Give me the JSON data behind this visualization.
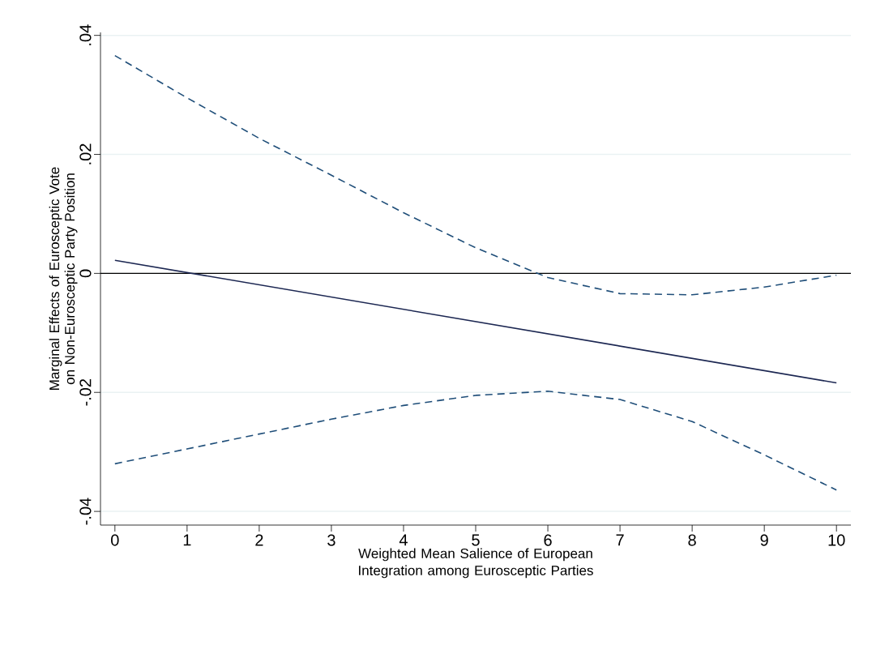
{
  "chart_data": {
    "type": "line",
    "xlabel": "Weighted Mean Salience of European Integration among Eurosceptic Parties",
    "ylabel": "Marginal Effects of Eurosceptic Vote on Non-Eurosceptic Party Position",
    "xlim": [
      -0.2,
      10.2
    ],
    "ylim": [
      -0.0423,
      0.0405
    ],
    "xticks": [
      0,
      1,
      2,
      3,
      4,
      5,
      6,
      7,
      8,
      9,
      10
    ],
    "yticks": [
      {
        "value": -0.04,
        "label": "-.04"
      },
      {
        "value": -0.02,
        "label": "-.02"
      },
      {
        "value": 0,
        "label": "0"
      },
      {
        "value": 0.02,
        "label": ".02"
      },
      {
        "value": 0.04,
        "label": ".04"
      }
    ],
    "grid": "y",
    "ref_lines": [
      {
        "axis": "y",
        "value": 0,
        "color": "#000000"
      }
    ],
    "series": [
      {
        "color": "#1f4e79",
        "line_style": "dashed",
        "x": [
          0,
          1,
          2,
          3,
          4,
          5,
          6,
          7,
          8,
          9,
          10
        ],
        "values": [
          0.0366,
          0.0295,
          0.0227,
          0.0165,
          0.0102,
          0.0043,
          -0.0007,
          -0.0034,
          -0.0036,
          -0.0023,
          -0.0003
        ]
      },
      {
        "color": "#1c2752",
        "line_style": "solid",
        "x": [
          0,
          10
        ],
        "values": [
          0.0022,
          -0.0184
        ]
      },
      {
        "color": "#1f4e79",
        "line_style": "dashed",
        "x": [
          0,
          1,
          2,
          3,
          4,
          5,
          6,
          7,
          8,
          9,
          10
        ],
        "values": [
          -0.032,
          -0.0295,
          -0.027,
          -0.0245,
          -0.0222,
          -0.0205,
          -0.0198,
          -0.0212,
          -0.0249,
          -0.0305,
          -0.0364
        ]
      }
    ]
  }
}
